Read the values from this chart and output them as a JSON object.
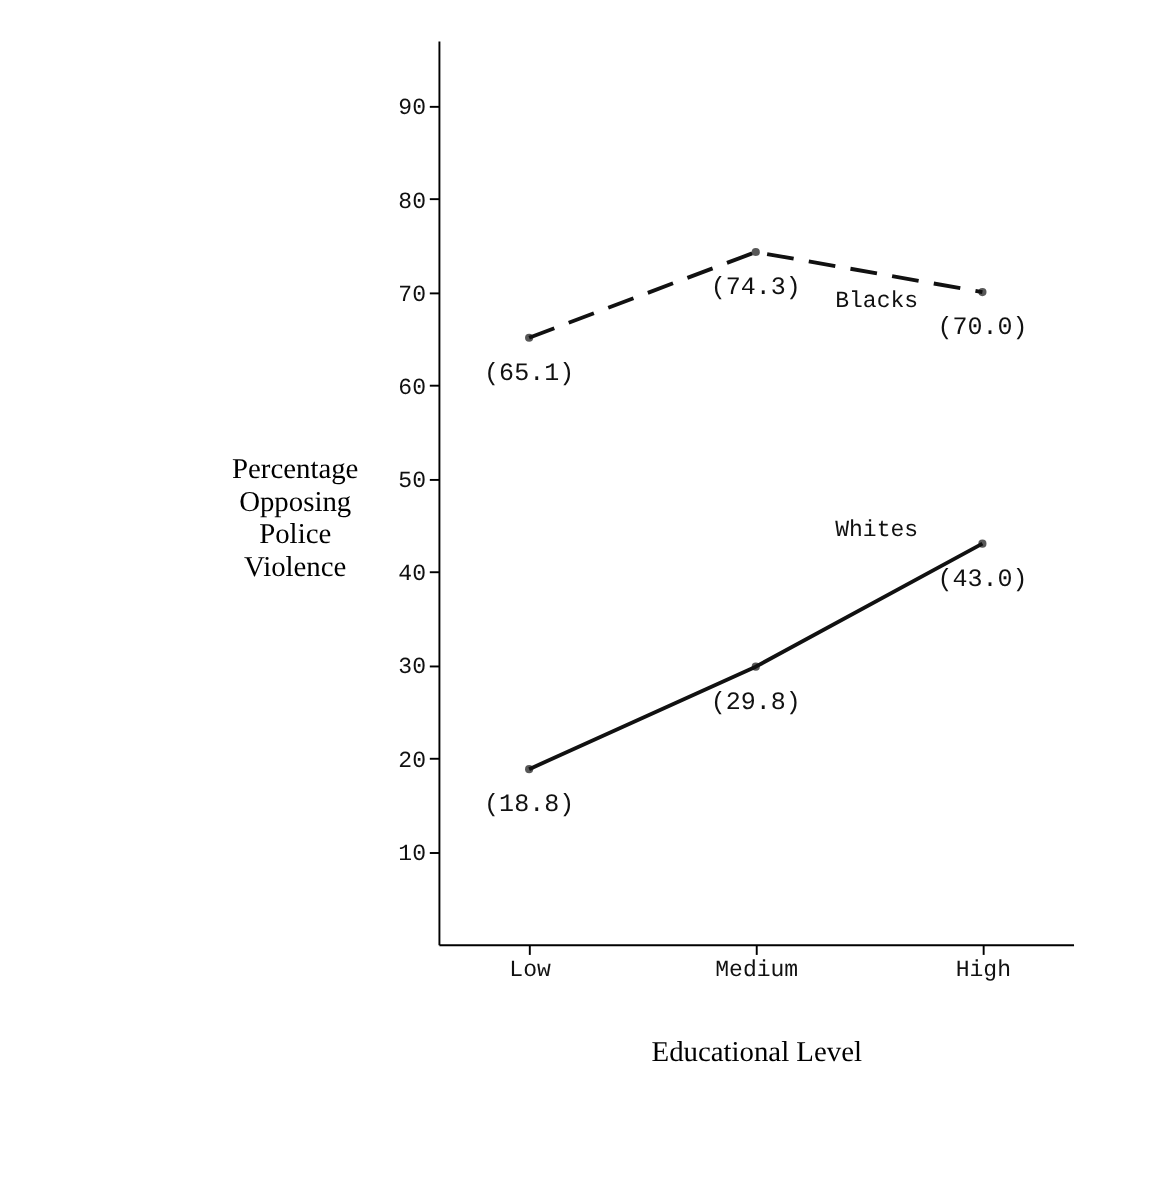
{
  "chart_data": {
    "type": "line",
    "xlabel": "Educational Level",
    "ylabel": "Percentage Opposing Police Violence",
    "categories": [
      "Low",
      "Medium",
      "High"
    ],
    "series": [
      {
        "name": "Blacks",
        "color": "#111111",
        "values": [
          65.1,
          74.3,
          70.0
        ],
        "line_style": "dashed",
        "value_labels": [
          "(65.1)",
          "(74.3)",
          "(70.0)"
        ]
      },
      {
        "name": "Whites",
        "color": "#111111",
        "values": [
          18.8,
          29.8,
          43.0
        ],
        "line_style": "solid",
        "value_labels": [
          "(18.8)",
          "(29.8)",
          "(43.0)"
        ]
      }
    ],
    "ylim": [
      0,
      97
    ],
    "yticks": [
      10,
      20,
      30,
      40,
      50,
      60,
      70,
      80,
      90
    ],
    "grid": false,
    "legend": false,
    "marker": "circle"
  }
}
